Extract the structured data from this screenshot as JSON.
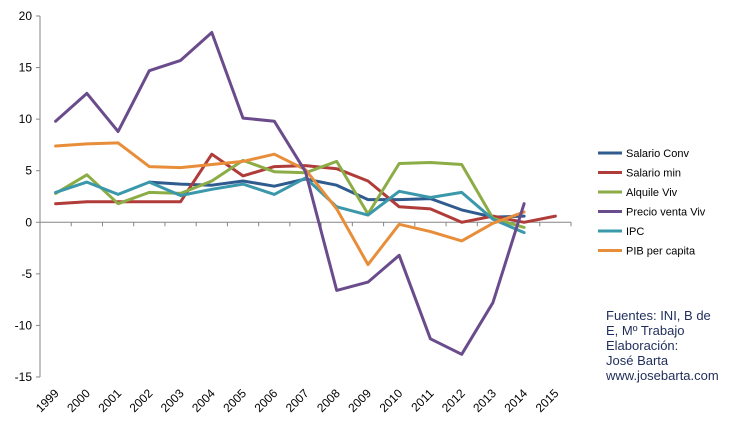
{
  "chart_data": {
    "type": "line",
    "title": "",
    "xlabel": "",
    "ylabel": "",
    "x": [
      "1999",
      "2000",
      "2001",
      "2002",
      "2003",
      "2004",
      "2005",
      "2006",
      "2007",
      "2008",
      "2009",
      "2010",
      "2011",
      "2012",
      "2013",
      "2014",
      "2015"
    ],
    "ylim": [
      -15,
      20
    ],
    "yticks": [
      -15,
      -10,
      -5,
      0,
      5,
      10,
      15,
      20
    ],
    "grid": false,
    "legend_position": "right",
    "series": [
      {
        "name": "Salario Conv",
        "color": "#2f5b8f",
        "values": [
          null,
          null,
          null,
          3.9,
          3.7,
          3.6,
          4.0,
          3.5,
          4.2,
          3.6,
          2.2,
          2.2,
          2.3,
          1.2,
          0.5,
          0.6,
          null
        ]
      },
      {
        "name": "Salario min",
        "color": "#b03c3a",
        "values": [
          1.8,
          2.0,
          2.0,
          2.0,
          2.0,
          6.6,
          4.5,
          5.4,
          5.5,
          5.2,
          4.0,
          1.5,
          1.3,
          0.0,
          0.6,
          0.0,
          0.6
        ]
      },
      {
        "name": "Alquile Viv",
        "color": "#8cac46",
        "values": [
          2.8,
          4.6,
          1.8,
          2.9,
          2.8,
          4.0,
          6.0,
          4.9,
          4.8,
          5.9,
          0.8,
          5.7,
          5.8,
          5.6,
          0.4,
          -0.5,
          null
        ]
      },
      {
        "name": "Precio venta Viv",
        "color": "#6a4c8c",
        "values": [
          9.8,
          12.5,
          8.8,
          14.7,
          15.7,
          18.4,
          10.1,
          9.8,
          4.9,
          -6.6,
          -5.8,
          -3.2,
          -11.3,
          -12.8,
          -7.8,
          1.8,
          null
        ]
      },
      {
        "name": "IPC",
        "color": "#3a98aa",
        "values": [
          2.9,
          3.9,
          2.7,
          3.9,
          2.6,
          3.2,
          3.7,
          2.7,
          4.3,
          1.5,
          0.7,
          3.0,
          2.4,
          2.9,
          0.3,
          -1.0,
          null
        ]
      },
      {
        "name": "PIB per capita",
        "color": "#e88e3a",
        "values": [
          7.4,
          7.6,
          7.7,
          5.4,
          5.3,
          5.6,
          5.9,
          6.6,
          5.1,
          1.3,
          -4.1,
          -0.2,
          -0.9,
          -1.8,
          -0.1,
          1.0,
          null
        ]
      }
    ]
  },
  "source_note": {
    "lines": [
      "Fuentes: INI, B de",
      "E, Mº Trabajo",
      "Elaboración:",
      "José Barta",
      "www.josebarta.com"
    ]
  }
}
